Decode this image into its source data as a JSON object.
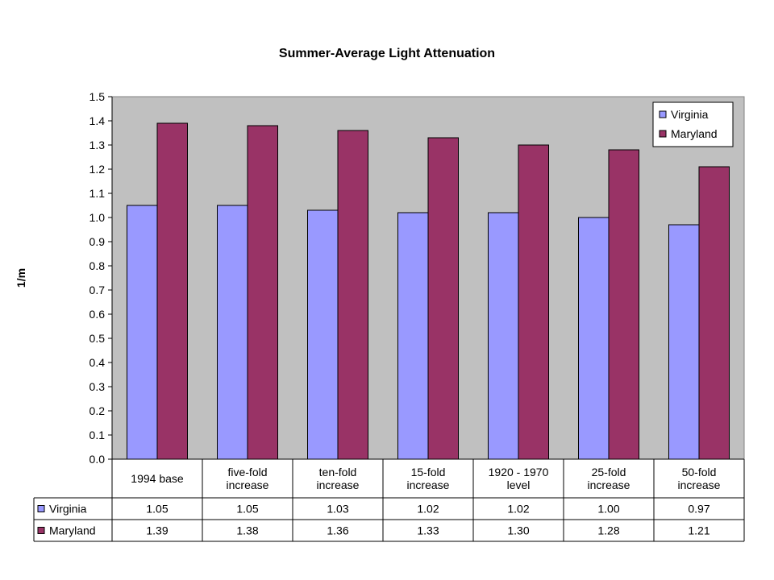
{
  "chart_data": {
    "type": "bar",
    "title": "Summer-Average Light Attenuation",
    "xlabel": "",
    "ylabel": "1/m",
    "ylim": [
      0,
      1.5
    ],
    "yticks": [
      "0.0",
      "0.1",
      "0.2",
      "0.3",
      "0.4",
      "0.5",
      "0.6",
      "0.7",
      "0.8",
      "0.9",
      "1.0",
      "1.1",
      "1.2",
      "1.3",
      "1.4",
      "1.5"
    ],
    "categories": [
      [
        "1994 base"
      ],
      [
        "five-fold",
        "increase"
      ],
      [
        "ten-fold",
        "increase"
      ],
      [
        "15-fold",
        "increase"
      ],
      [
        "1920 - 1970",
        "level"
      ],
      [
        "25-fold",
        "increase"
      ],
      [
        "50-fold",
        "increase"
      ]
    ],
    "series": [
      {
        "name": "Virginia",
        "color": "#9999ff",
        "values": [
          1.05,
          1.05,
          1.03,
          1.02,
          1.02,
          1.0,
          0.97
        ],
        "labels": [
          "1.05",
          "1.05",
          "1.03",
          "1.02",
          "1.02",
          "1.00",
          "0.97"
        ]
      },
      {
        "name": "Maryland",
        "color": "#993366",
        "values": [
          1.39,
          1.38,
          1.36,
          1.33,
          1.3,
          1.28,
          1.21
        ],
        "labels": [
          "1.39",
          "1.38",
          "1.36",
          "1.33",
          "1.30",
          "1.28",
          "1.21"
        ]
      }
    ],
    "plot_background": "#c0c0c0",
    "grid": false,
    "legend_position": "top-right",
    "data_table": true
  }
}
